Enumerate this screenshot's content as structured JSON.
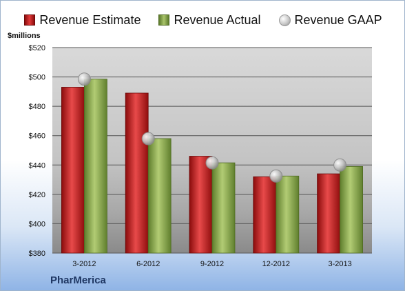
{
  "legend": {
    "estimate": "Revenue Estimate",
    "actual": "Revenue Actual",
    "gaap": "Revenue GAAP"
  },
  "company": "PharMerica",
  "chart_data": {
    "type": "bar",
    "title": "",
    "ylabel": "$millions",
    "xlabel": "",
    "categories": [
      "3-2012",
      "6-2012",
      "9-2012",
      "12-2012",
      "3-2013"
    ],
    "ylim": [
      380,
      520
    ],
    "yticks": [
      380,
      400,
      420,
      440,
      460,
      480,
      500,
      520
    ],
    "ytick_labels": [
      "$380",
      "$400",
      "$420",
      "$440",
      "$460",
      "$480",
      "$500",
      "$520"
    ],
    "grid": true,
    "legend_position": "top",
    "series": [
      {
        "name": "Revenue Estimate",
        "kind": "bar",
        "color": "#c81e1e",
        "values": [
          493,
          489,
          446,
          432,
          434
        ]
      },
      {
        "name": "Revenue Actual",
        "kind": "bar",
        "color": "#8fae4e",
        "values": [
          498.5,
          458,
          441.5,
          432.5,
          439
        ]
      },
      {
        "name": "Revenue GAAP",
        "kind": "marker",
        "color": "#b8b8b8",
        "values": [
          498.5,
          458,
          441.5,
          432.5,
          440
        ]
      }
    ]
  }
}
